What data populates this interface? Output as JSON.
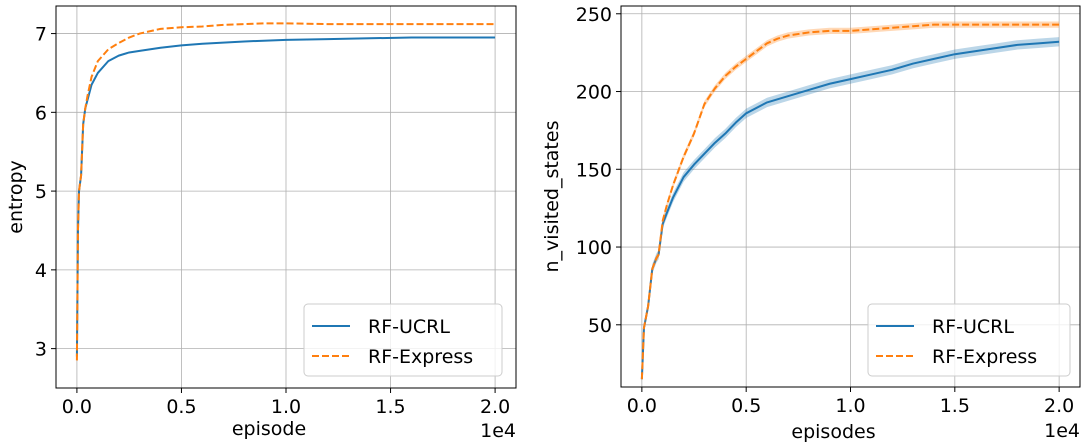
{
  "colors": {
    "series_1": "#1f77b4",
    "series_2": "#ff7f0e",
    "grid": "#b0b0b0"
  },
  "chart_data": [
    {
      "type": "line",
      "title": "",
      "xlabel": "episode",
      "ylabel": "entropy",
      "x_offset_text": "1e4",
      "xlim": [
        -0.1,
        2.1
      ],
      "ylim": [
        2.5,
        7.35
      ],
      "x_ticks": [
        0.0,
        0.5,
        1.0,
        1.5,
        2.0
      ],
      "x_tick_labels": [
        "0.0",
        "0.5",
        "1.0",
        "1.5",
        "2.0"
      ],
      "y_ticks": [
        3,
        4,
        5,
        6,
        7
      ],
      "y_tick_labels": [
        "3",
        "4",
        "5",
        "6",
        "7"
      ],
      "grid": true,
      "legend_position": "lower-right",
      "series": [
        {
          "name": "RF-UCRL",
          "style": "solid",
          "x": [
            0.0,
            0.005,
            0.01,
            0.02,
            0.03,
            0.04,
            0.05,
            0.07,
            0.1,
            0.15,
            0.2,
            0.25,
            0.3,
            0.4,
            0.5,
            0.6,
            0.8,
            1.0,
            1.2,
            1.4,
            1.6,
            1.8,
            2.0
          ],
          "y": [
            2.9,
            4.5,
            5.0,
            5.2,
            5.85,
            6.05,
            6.15,
            6.35,
            6.5,
            6.65,
            6.72,
            6.76,
            6.78,
            6.82,
            6.85,
            6.87,
            6.9,
            6.92,
            6.93,
            6.94,
            6.95,
            6.95,
            6.95
          ]
        },
        {
          "name": "RF-Express",
          "style": "dashed",
          "x": [
            0.0,
            0.005,
            0.01,
            0.02,
            0.03,
            0.04,
            0.05,
            0.07,
            0.1,
            0.15,
            0.2,
            0.25,
            0.3,
            0.4,
            0.5,
            0.6,
            0.7,
            0.8,
            0.9,
            1.0,
            1.2,
            1.5,
            2.0
          ],
          "y": [
            2.85,
            4.5,
            5.0,
            5.2,
            5.85,
            6.05,
            6.2,
            6.45,
            6.65,
            6.8,
            6.88,
            6.95,
            7.0,
            7.06,
            7.08,
            7.09,
            7.11,
            7.12,
            7.13,
            7.13,
            7.12,
            7.12,
            7.12
          ]
        }
      ]
    },
    {
      "type": "line",
      "title": "",
      "xlabel": "episodes",
      "ylabel": "n_visited_states",
      "x_offset_text": "1e4",
      "xlim": [
        -0.1,
        2.1
      ],
      "ylim": [
        10,
        255
      ],
      "x_ticks": [
        0.0,
        0.5,
        1.0,
        1.5,
        2.0
      ],
      "x_tick_labels": [
        "0.0",
        "0.5",
        "1.0",
        "1.5",
        "2.0"
      ],
      "y_ticks": [
        50,
        100,
        150,
        200,
        250
      ],
      "y_tick_labels": [
        "50",
        "100",
        "150",
        "200",
        "250"
      ],
      "grid": true,
      "legend_position": "lower-right",
      "series": [
        {
          "name": "RF-UCRL",
          "style": "solid",
          "band": 3,
          "x": [
            0.0,
            0.01,
            0.02,
            0.03,
            0.05,
            0.07,
            0.08,
            0.1,
            0.12,
            0.15,
            0.2,
            0.25,
            0.3,
            0.35,
            0.4,
            0.45,
            0.5,
            0.6,
            0.7,
            0.8,
            0.9,
            1.0,
            1.1,
            1.2,
            1.3,
            1.4,
            1.5,
            1.6,
            1.7,
            1.8,
            1.9,
            2.0
          ],
          "y": [
            15,
            48,
            55,
            62,
            86,
            93,
            95,
            115,
            122,
            132,
            145,
            153,
            160,
            167,
            173,
            180,
            186,
            193,
            197,
            201,
            205,
            208,
            211,
            214,
            218,
            221,
            224,
            226,
            228,
            230,
            231,
            232
          ]
        },
        {
          "name": "RF-Express",
          "style": "dashed",
          "band": 2,
          "x": [
            0.0,
            0.01,
            0.02,
            0.03,
            0.05,
            0.07,
            0.08,
            0.1,
            0.12,
            0.15,
            0.2,
            0.25,
            0.3,
            0.35,
            0.4,
            0.45,
            0.5,
            0.55,
            0.6,
            0.65,
            0.7,
            0.8,
            0.9,
            1.0,
            1.1,
            1.2,
            1.3,
            1.4,
            1.6,
            1.8,
            2.0
          ],
          "y": [
            15,
            48,
            55,
            62,
            86,
            93,
            95,
            117,
            127,
            140,
            158,
            173,
            192,
            202,
            210,
            216,
            221,
            226,
            231,
            234,
            236,
            238,
            239,
            239,
            240,
            241,
            242,
            243,
            243,
            243,
            243
          ]
        }
      ]
    }
  ]
}
